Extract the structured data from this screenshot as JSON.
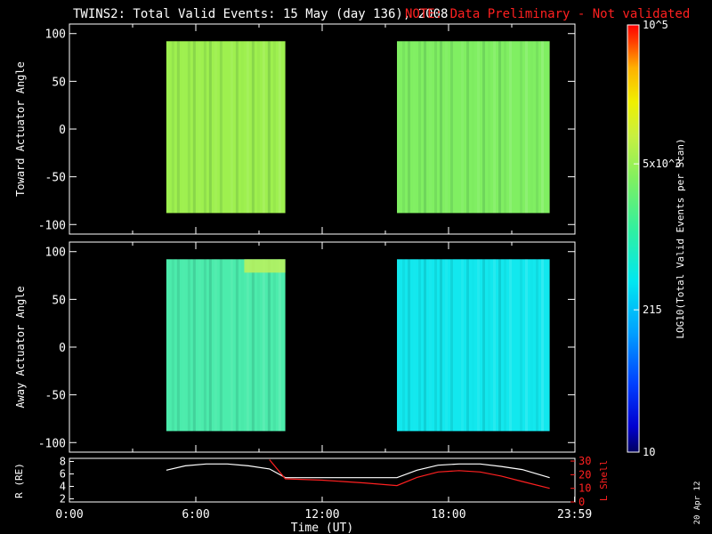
{
  "header": {
    "title": "TWINS2: Total Valid Events: 15 May (day 136), 2008",
    "note": "NOTE: Data Preliminary - Not validated"
  },
  "footer": {
    "date_stamp": "20 Apr 12"
  },
  "colors": {
    "background": "#000000",
    "axes": "#ffffff",
    "note": "#ff2020",
    "radius_trace": "#ffffff",
    "lshell_trace": "#ff2020"
  },
  "chart_data": [
    {
      "id": "toward",
      "type": "heatmap",
      "title": "",
      "xlabel": "",
      "ylabel": "Toward Actuator Angle",
      "xlim": [
        0,
        24
      ],
      "ylim": [
        -110,
        110
      ],
      "yticks": [
        100,
        50,
        0,
        -50,
        -100
      ],
      "data_blocks": [
        {
          "t_start": 4.6,
          "t_end": 10.25,
          "angle_min": -88,
          "angle_max": 92,
          "log10_events_mean": 3.8,
          "color": "#9ef04f"
        },
        {
          "t_start": 15.55,
          "t_end": 22.8,
          "angle_min": -88,
          "angle_max": 92,
          "log10_events_mean": 3.6,
          "color": "#80ef62"
        }
      ]
    },
    {
      "id": "away",
      "type": "heatmap",
      "title": "",
      "xlabel": "",
      "ylabel": "Away Actuator Angle",
      "xlim": [
        0,
        24
      ],
      "ylim": [
        -110,
        110
      ],
      "yticks": [
        100,
        50,
        0,
        -50,
        -100
      ],
      "data_blocks": [
        {
          "t_start": 4.6,
          "t_end": 10.25,
          "angle_min": -88,
          "angle_max": 92,
          "log10_events_mean": 3.2,
          "color": "#4cecac"
        },
        {
          "t_start": 15.55,
          "t_end": 22.8,
          "angle_min": -88,
          "angle_max": 92,
          "log10_events_mean": 2.7,
          "color": "#12e8ee"
        }
      ],
      "annotations": [
        {
          "t_start": 8.3,
          "t_end": 10.25,
          "angle_min": 78,
          "angle_max": 92,
          "color": "#bdf25a"
        }
      ]
    },
    {
      "id": "orbit",
      "type": "line",
      "title": "",
      "xlabel": "Time (UT)",
      "ylabel": "R (RE)",
      "ylabel_right": "L Shell",
      "xlim": [
        0,
        24
      ],
      "xticks": [
        "0:00",
        "6:00",
        "12:00",
        "18:00",
        "23:59"
      ],
      "xtick_values": [
        0,
        6,
        12,
        18,
        23.983
      ],
      "ylim_left": [
        1.5,
        8.5
      ],
      "yticks_left": [
        2,
        4,
        6,
        8
      ],
      "ylim_right": [
        0,
        32
      ],
      "yticks_right": [
        0,
        10,
        20,
        30
      ],
      "series": [
        {
          "axis": "left",
          "color": "#ffffff",
          "x": [
            4.6,
            5.5,
            6.5,
            7.5,
            8.5,
            9.5,
            10.25,
            12,
            14,
            15.55,
            16.5,
            17.5,
            18.5,
            19.5,
            20.5,
            21.5,
            22.8
          ],
          "values": [
            6.6,
            7.3,
            7.6,
            7.6,
            7.3,
            6.8,
            5.4,
            5.4,
            5.4,
            5.4,
            6.6,
            7.4,
            7.6,
            7.6,
            7.2,
            6.7,
            5.4
          ]
        },
        {
          "axis": "right",
          "color": "#ff2020",
          "x": [
            9.5,
            10.25,
            12,
            14,
            15.55,
            16.5,
            17.5,
            18.5,
            19.5,
            20.5,
            21.5,
            22.8
          ],
          "values": [
            31,
            17,
            16,
            14,
            12,
            18,
            22,
            23,
            22,
            19,
            15,
            10
          ]
        }
      ]
    },
    {
      "id": "colorbar",
      "type": "heatmap",
      "title": "",
      "ylabel": "LOG10(Total Valid Events per Scan)",
      "scale": "log",
      "range": [
        10,
        100000
      ],
      "ticks": [
        {
          "value": 100000,
          "label": "10^5"
        },
        {
          "value": 5000,
          "label": "5x10^3"
        },
        {
          "value": 215,
          "label": "215"
        },
        {
          "value": 10,
          "label": "10"
        }
      ]
    }
  ]
}
